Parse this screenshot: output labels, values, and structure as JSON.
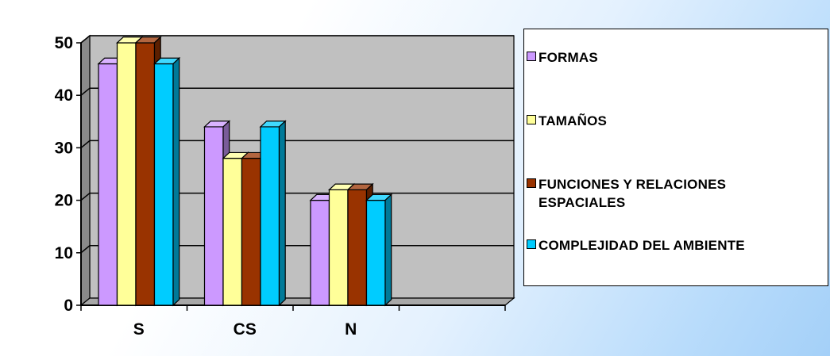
{
  "chart_data": {
    "type": "bar",
    "categories": [
      "S",
      "CS",
      "N",
      ""
    ],
    "series": [
      {
        "name": "FORMAS",
        "values": [
          46,
          34,
          20,
          null
        ],
        "color": "#cc99ff"
      },
      {
        "name": "TAMAÑOS",
        "values": [
          50,
          28,
          22,
          null
        ],
        "color": "#ffff99"
      },
      {
        "name": "FUNCIONES Y RELACIONES ESPACIALES",
        "values": [
          50,
          28,
          22,
          null
        ],
        "color": "#993300"
      },
      {
        "name": "COMPLEJIDAD DEL AMBIENTE",
        "values": [
          46,
          34,
          20,
          null
        ],
        "color": "#00ccff"
      }
    ],
    "yticks": [
      "0",
      "10",
      "20",
      "30",
      "40",
      "50"
    ],
    "ylim": [
      0,
      50
    ],
    "title": "",
    "xlabel": "",
    "ylabel": "",
    "grid": true,
    "legend_position": "right",
    "plot_background": "#c0c0c0"
  }
}
